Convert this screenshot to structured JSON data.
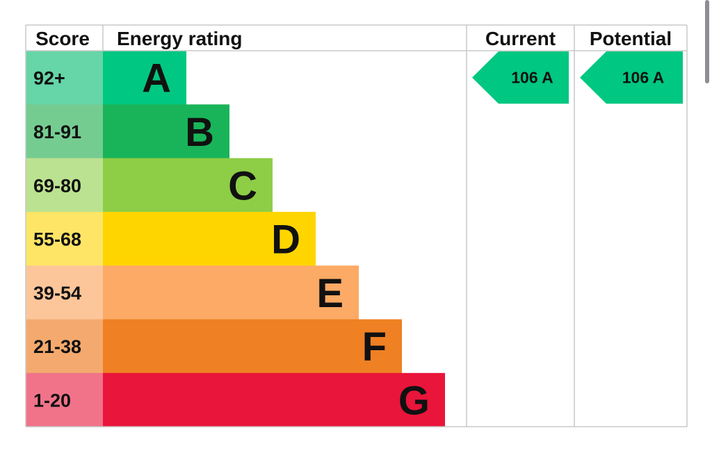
{
  "chart_data": {
    "type": "bar",
    "headers": {
      "score": "Score",
      "rating": "Energy rating",
      "current": "Current",
      "potential": "Potential"
    },
    "bands": [
      {
        "letter": "A",
        "range": "92+",
        "color": "#00c781",
        "score_bg": "#66d5a7"
      },
      {
        "letter": "B",
        "range": "81-91",
        "color": "#19b459",
        "score_bg": "#75cc91"
      },
      {
        "letter": "C",
        "range": "69-80",
        "color": "#8dce46",
        "score_bg": "#bbe290"
      },
      {
        "letter": "D",
        "range": "55-68",
        "color": "#ffd500",
        "score_bg": "#ffe566"
      },
      {
        "letter": "E",
        "range": "39-54",
        "color": "#fcaa65",
        "score_bg": "#fdc69a"
      },
      {
        "letter": "F",
        "range": "21-38",
        "color": "#ef8023",
        "score_bg": "#f4aa6e"
      },
      {
        "letter": "G",
        "range": "1-20",
        "color": "#e9153b",
        "score_bg": "#f0738a"
      }
    ],
    "current": {
      "value": 106,
      "band": "A",
      "label": "106  A",
      "color": "#00c781"
    },
    "potential": {
      "value": 106,
      "band": "A",
      "label": "106  A",
      "color": "#00c781"
    }
  }
}
